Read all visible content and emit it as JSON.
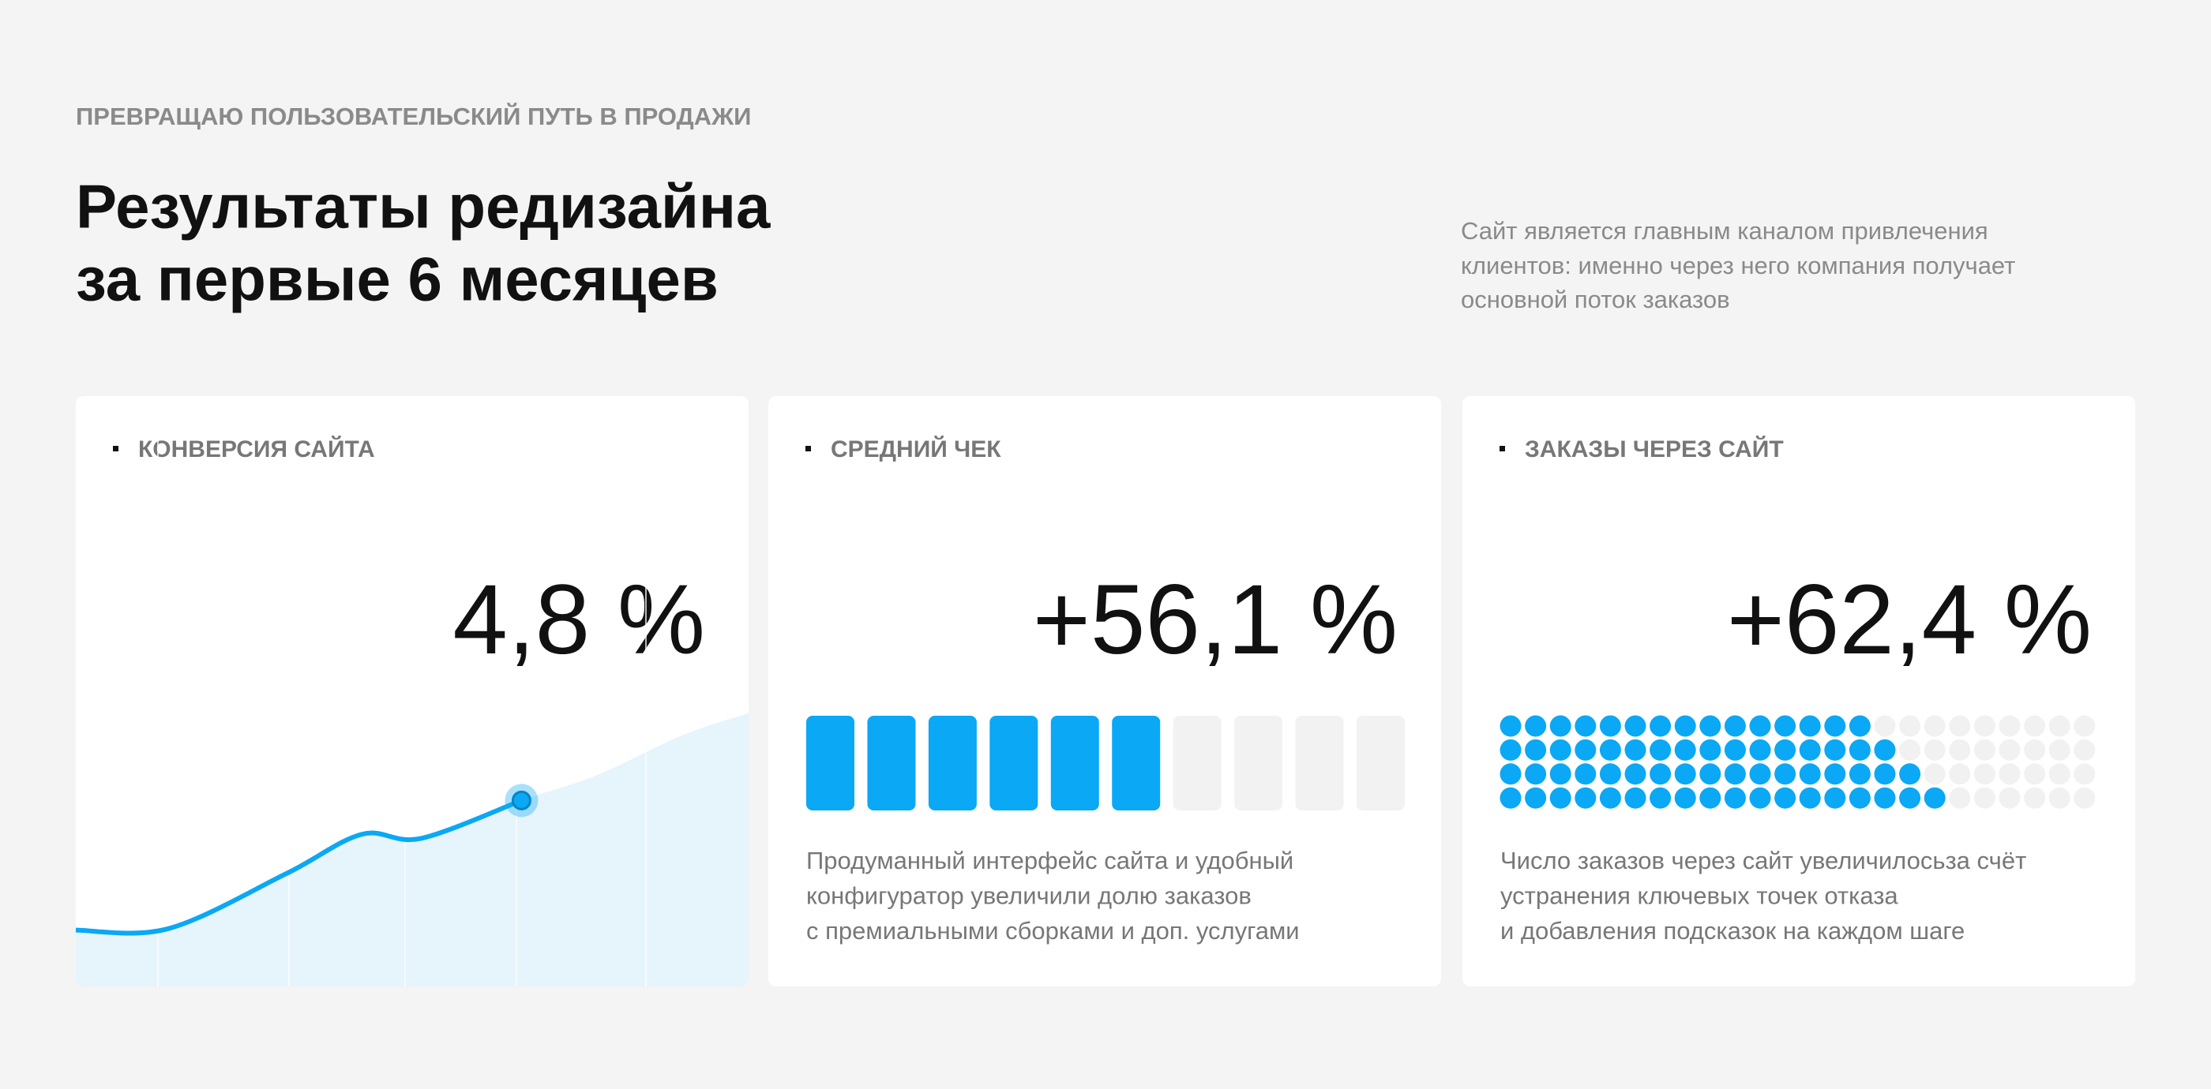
{
  "eyebrow": "ПРЕВРАЩАЮ ПОЛЬЗОВАТЕЛЬСКИЙ ПУТЬ В ПРОДАЖИ",
  "title": [
    "Результаты редизайна",
    "за первые 6 месяцев"
  ],
  "description": [
    "Сайт является главным каналом привлечения",
    "клиентов: именно через него компания получает",
    "основной поток заказов"
  ],
  "cards": [
    {
      "label": "КОНВЕРСИЯ САЙТА",
      "value": "4,8 %",
      "trend": {
        "x": [
          0,
          1.1,
          2.5,
          3.4,
          4.1,
          5.3,
          6.2,
          7.2,
          8
        ],
        "values": [
          20,
          20.5,
          40,
          54,
          52.5,
          66,
          75,
          89,
          97
        ],
        "xlim": [
          0,
          8
        ],
        "ylim": [
          0,
          100
        ],
        "current": 5,
        "color": "#0aa8f5"
      }
    },
    {
      "label": "СРЕДНИЙ ЧЕК",
      "value": "+56,1 %",
      "meter": {
        "segments": 10,
        "filled": 6,
        "color": "#0aa8f5"
      },
      "text": [
        "Продуманный интерфейс сайта и удобный",
        "конфигуратор увеличили долю заказов",
        "с премиальными сборками и доп. услугами"
      ]
    },
    {
      "label": "ЗАКАЗЫ ЧЕРЕЗ САЙТ",
      "value": "+62,4 %",
      "dots": {
        "columns": 24,
        "filled": [
          15,
          16,
          17,
          18
        ],
        "color": "#0aa8f5"
      },
      "text": [
        "Число заказов через сайт увеличилосьза счёт",
        "устранения ключевых точек отказа",
        "и добавления подсказок на каждом шаге"
      ]
    }
  ]
}
